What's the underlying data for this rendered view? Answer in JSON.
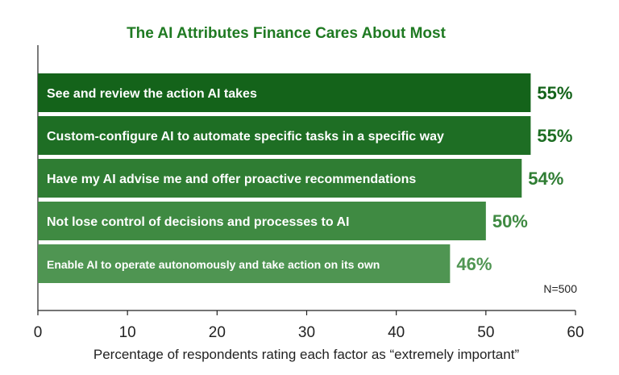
{
  "chart_data": {
    "type": "bar",
    "orientation": "horizontal",
    "title": "The AI Attributes Finance Cares About Most",
    "xlabel": "Percentage of respondents rating each factor as “extremely important”",
    "ylabel": "",
    "note": "N=500",
    "xlim": [
      0,
      60
    ],
    "xticks": [
      "0",
      "10",
      "20",
      "30",
      "40",
      "50",
      "60"
    ],
    "grid": false,
    "categories": [
      "See and review the action AI takes",
      "Custom-configure AI to automate specific tasks in a specific way",
      "Have my AI advise me and offer proactive recommendations",
      "Not lose control of decisions and processes to AI",
      "Enable AI to operate autonomously and take action on its own"
    ],
    "values": [
      55,
      55,
      54,
      50,
      46
    ],
    "value_labels": [
      "55%",
      "55%",
      "54%",
      "50%",
      "46%"
    ],
    "bar_colors": [
      "#14631a",
      "#1e6e24",
      "#2f7d33",
      "#3f8a42",
      "#4f9552"
    ],
    "value_label_colors": [
      "#14631a",
      "#1e6e24",
      "#2f7d33",
      "#3f8a42",
      "#4f9552"
    ],
    "title_color": "#1f7a22"
  }
}
